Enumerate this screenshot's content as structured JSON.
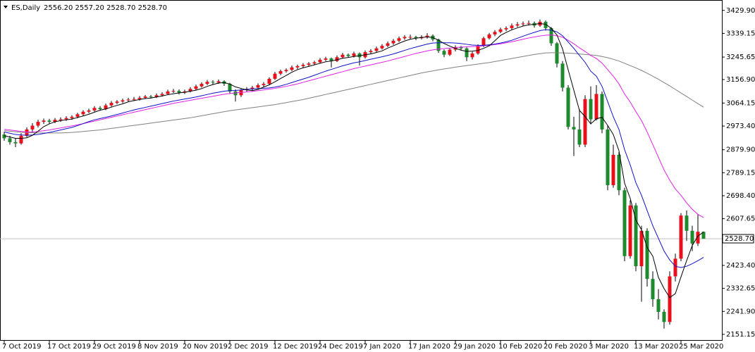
{
  "chart_data": {
    "type": "candlestick",
    "symbol": "ES,Daily",
    "ohlc_text": "2556.20 2557.20 2528.70 2528.70",
    "up_color": "#e8111b",
    "down_color": "#1e8a2e",
    "wick_color": "#000000",
    "ylim": [
      2126,
      3457
    ],
    "yticks": [
      {
        "value": 3429.9,
        "label": "3429.90"
      },
      {
        "value": 3339.15,
        "label": "3339.15"
      },
      {
        "value": 3245.65,
        "label": "3245.65"
      },
      {
        "value": 3156.9,
        "label": "3156.90"
      },
      {
        "value": 3064.15,
        "label": "3064.15"
      },
      {
        "value": 2973.4,
        "label": "2973.40"
      },
      {
        "value": 2879.9,
        "label": "2879.90"
      },
      {
        "value": 2789.15,
        "label": "2789.15"
      },
      {
        "value": 2698.4,
        "label": "2698.40"
      },
      {
        "value": 2607.65,
        "label": "2607.65"
      },
      {
        "value": 2423.4,
        "label": "2423.40"
      },
      {
        "value": 2332.65,
        "label": "2332.65"
      },
      {
        "value": 2241.9,
        "label": "2241.90"
      },
      {
        "value": 2151.15,
        "label": "2151.15"
      }
    ],
    "current_price": {
      "value": 2528.7,
      "label": "2528.70",
      "color": "#c0c0c0"
    },
    "categories": [
      "7 Oct 2019",
      null,
      null,
      null,
      null,
      null,
      null,
      null,
      "17 Oct 2019",
      null,
      null,
      null,
      null,
      null,
      null,
      null,
      "29 Oct 2019",
      null,
      null,
      null,
      null,
      null,
      null,
      null,
      "8 Nov 2019",
      null,
      null,
      null,
      null,
      null,
      null,
      null,
      "20 Nov 2019",
      null,
      null,
      null,
      null,
      null,
      null,
      null,
      "2 Dec 2019",
      null,
      null,
      null,
      null,
      null,
      null,
      null,
      "12 Dec 2019",
      null,
      null,
      null,
      null,
      null,
      null,
      null,
      "24 Dec 2019",
      null,
      null,
      null,
      null,
      null,
      null,
      null,
      "7 Jan 2020",
      null,
      null,
      null,
      null,
      null,
      null,
      null,
      "17 Jan 2020",
      null,
      null,
      null,
      null,
      null,
      null,
      null,
      "29 Jan 2020",
      null,
      null,
      null,
      null,
      null,
      null,
      null,
      "10 Feb 2020",
      null,
      null,
      null,
      null,
      null,
      null,
      null,
      "20 Feb 2020",
      null,
      null,
      null,
      null,
      null,
      null,
      null,
      "3 Mar 2020",
      null,
      null,
      null,
      null,
      null,
      null,
      null,
      "13 Mar 2020",
      null,
      null,
      null,
      null,
      null,
      null,
      null,
      "25 Mar 2020",
      null,
      null,
      null,
      null
    ],
    "open": [
      2940,
      2925,
      2910,
      2905,
      2935,
      2960,
      2975,
      2990,
      2995,
      2990,
      2998,
      3000,
      3005,
      3010,
      3020,
      3030,
      3035,
      3045,
      3040,
      3055,
      3065,
      3070,
      3075,
      3078,
      3080,
      3085,
      3090,
      3088,
      3095,
      3100,
      3110,
      3112,
      3105,
      3110,
      3120,
      3130,
      3140,
      3148,
      3145,
      3150,
      3140,
      3110,
      3095,
      3115,
      3120,
      3125,
      3135,
      3140,
      3160,
      3180,
      3190,
      3195,
      3205,
      3210,
      3215,
      3220,
      3225,
      3235,
      3240,
      3230,
      3245,
      3255,
      3250,
      3260,
      3245,
      3265,
      3270,
      3280,
      3290,
      3300,
      3310,
      3320,
      3325,
      3325,
      3320,
      3325,
      3330,
      3315,
      3270,
      3255,
      3275,
      3285,
      3280,
      3245,
      3260,
      3290,
      3320,
      3335,
      3345,
      3355,
      3360,
      3370,
      3375,
      3378,
      3380,
      3370,
      3385,
      3360,
      3300,
      3220,
      3125,
      2970,
      2960,
      2900,
      3080,
      3000,
      3100,
      2960,
      2740,
      2860,
      2720,
      2460,
      2660,
      2420,
      2560,
      2370,
      2290,
      2240,
      2200,
      2380,
      2450,
      2620,
      2560,
      2510,
      2556.2
    ],
    "high": [
      2950,
      2935,
      2925,
      2945,
      2968,
      2985,
      2998,
      3003,
      3002,
      3005,
      3008,
      3012,
      3016,
      3026,
      3036,
      3042,
      3052,
      3052,
      3062,
      3072,
      3076,
      3082,
      3085,
      3088,
      3092,
      3096,
      3096,
      3102,
      3107,
      3117,
      3120,
      3118,
      3117,
      3127,
      3137,
      3146,
      3155,
      3154,
      3157,
      3154,
      3144,
      3118,
      3120,
      3127,
      3132,
      3142,
      3147,
      3166,
      3187,
      3196,
      3201,
      3212,
      3216,
      3222,
      3226,
      3231,
      3242,
      3247,
      3244,
      3252,
      3262,
      3260,
      3267,
      3264,
      3272,
      3277,
      3287,
      3297,
      3307,
      3317,
      3327,
      3332,
      3334,
      3330,
      3332,
      3340,
      3335,
      3318,
      3276,
      3282,
      3292,
      3290,
      3284,
      3267,
      3296,
      3326,
      3341,
      3352,
      3362,
      3367,
      3378,
      3384,
      3386,
      3390,
      3386,
      3394,
      3390,
      3364,
      3305,
      3230,
      3135,
      3010,
      3040,
      3095,
      3130,
      3135,
      3110,
      2975,
      2900,
      2870,
      2730,
      2680,
      2670,
      2580,
      2570,
      2400,
      2330,
      2250,
      2400,
      2470,
      2630,
      2640,
      2580,
      2625,
      2557.2
    ],
    "low": [
      2915,
      2900,
      2890,
      2900,
      2930,
      2950,
      2968,
      2982,
      2982,
      2985,
      2990,
      2994,
      2998,
      3004,
      3014,
      3024,
      3030,
      3034,
      3036,
      3050,
      3060,
      3064,
      3070,
      3072,
      3074,
      3080,
      3082,
      3084,
      3090,
      3096,
      3104,
      3098,
      3100,
      3106,
      3115,
      3125,
      3135,
      3138,
      3140,
      3132,
      3100,
      3070,
      3088,
      3108,
      3112,
      3120,
      3128,
      3136,
      3155,
      3174,
      3184,
      3190,
      3198,
      3204,
      3208,
      3214,
      3220,
      3230,
      3205,
      3226,
      3240,
      3244,
      3244,
      3212,
      3240,
      3258,
      3265,
      3275,
      3285,
      3294,
      3305,
      3314,
      3316,
      3312,
      3315,
      3318,
      3308,
      3262,
      3245,
      3250,
      3268,
      3272,
      3230,
      3236,
      3255,
      3285,
      3315,
      3328,
      3340,
      3348,
      3354,
      3364,
      3368,
      3370,
      3362,
      3365,
      3350,
      3290,
      3205,
      3110,
      2960,
      2855,
      2890,
      2890,
      2980,
      2995,
      2945,
      2720,
      2730,
      2700,
      2440,
      2450,
      2400,
      2280,
      2340,
      2260,
      2210,
      2174,
      2190,
      2360,
      2440,
      2520,
      2480,
      2500,
      2528.7
    ],
    "close": [
      2925,
      2910,
      2905,
      2935,
      2960,
      2975,
      2990,
      2995,
      2990,
      2998,
      3000,
      3005,
      3010,
      3020,
      3030,
      3035,
      3045,
      3040,
      3055,
      3065,
      3070,
      3075,
      3078,
      3080,
      3085,
      3090,
      3088,
      3095,
      3100,
      3110,
      3112,
      3105,
      3110,
      3120,
      3130,
      3140,
      3148,
      3145,
      3150,
      3140,
      3110,
      3095,
      3115,
      3120,
      3125,
      3135,
      3140,
      3160,
      3180,
      3190,
      3195,
      3205,
      3210,
      3215,
      3220,
      3225,
      3235,
      3240,
      3230,
      3245,
      3255,
      3250,
      3260,
      3245,
      3265,
      3270,
      3280,
      3290,
      3300,
      3310,
      3320,
      3325,
      3325,
      3320,
      3325,
      3330,
      3315,
      3270,
      3255,
      3275,
      3285,
      3280,
      3245,
      3260,
      3290,
      3320,
      3335,
      3345,
      3355,
      3360,
      3370,
      3375,
      3378,
      3380,
      3370,
      3385,
      3360,
      3300,
      3220,
      3125,
      2970,
      2960,
      2900,
      3080,
      3000,
      3100,
      2960,
      2740,
      2860,
      2720,
      2460,
      2660,
      2420,
      2560,
      2370,
      2290,
      2240,
      2200,
      2380,
      2450,
      2620,
      2560,
      2510,
      2556.2,
      2528.7
    ],
    "ma_lines": [
      {
        "color": "#808080",
        "values": [
          2955,
          2953,
          2951,
          2949,
          2948,
          2947,
          2946,
          2946,
          2946,
          2946,
          2946,
          2947,
          2948,
          2950,
          2952,
          2954,
          2956,
          2958,
          2961,
          2964,
          2967,
          2970,
          2973,
          2976,
          2979,
          2982,
          2985,
          2988,
          2991,
          2994,
          2997,
          3000,
          3003,
          3006,
          3010,
          3014,
          3018,
          3022,
          3026,
          3030,
          3034,
          3037,
          3040,
          3043,
          3046,
          3049,
          3052,
          3055,
          3058,
          3062,
          3066,
          3070,
          3074,
          3078,
          3083,
          3088,
          3093,
          3098,
          3103,
          3108,
          3113,
          3118,
          3123,
          3128,
          3133,
          3138,
          3143,
          3148,
          3153,
          3158,
          3163,
          3168,
          3173,
          3178,
          3183,
          3187,
          3191,
          3195,
          3199,
          3202,
          3206,
          3209,
          3212,
          3215,
          3218,
          3221,
          3224,
          3228,
          3232,
          3236,
          3240,
          3244,
          3248,
          3252,
          3256,
          3259,
          3262,
          3263,
          3263,
          3262,
          3261,
          3260,
          3258,
          3256,
          3254,
          3252,
          3248,
          3243,
          3237,
          3230,
          3221,
          3212,
          3203,
          3193,
          3182,
          3170,
          3158,
          3145,
          3132,
          3118,
          3104,
          3090,
          3076,
          3062,
          3048
        ]
      },
      {
        "color": "#e020e0",
        "values": [
          2960,
          2958,
          2955,
          2952,
          2950,
          2950,
          2952,
          2955,
          2958,
          2962,
          2966,
          2970,
          2974,
          2978,
          2983,
          2988,
          2993,
          2998,
          3003,
          3008,
          3013,
          3018,
          3023,
          3028,
          3033,
          3038,
          3043,
          3048,
          3053,
          3058,
          3063,
          3067,
          3071,
          3075,
          3079,
          3083,
          3087,
          3091,
          3095,
          3099,
          3102,
          3104,
          3106,
          3108,
          3110,
          3113,
          3116,
          3119,
          3122,
          3126,
          3130,
          3135,
          3140,
          3146,
          3152,
          3158,
          3164,
          3170,
          3176,
          3182,
          3188,
          3194,
          3200,
          3205,
          3210,
          3215,
          3220,
          3225,
          3230,
          3236,
          3242,
          3248,
          3254,
          3260,
          3265,
          3270,
          3274,
          3277,
          3279,
          3281,
          3283,
          3285,
          3286,
          3287,
          3288,
          3290,
          3292,
          3295,
          3298,
          3302,
          3306,
          3311,
          3316,
          3321,
          3325,
          3329,
          3332,
          3333,
          3330,
          3324,
          3312,
          3298,
          3282,
          3268,
          3252,
          3240,
          3222,
          3196,
          3170,
          3140,
          3100,
          3068,
          3030,
          2995,
          2950,
          2900,
          2850,
          2800,
          2760,
          2725,
          2700,
          2670,
          2645,
          2625,
          2612
        ]
      },
      {
        "color": "#1010c8",
        "values": [
          2950,
          2945,
          2940,
          2938,
          2937,
          2938,
          2940,
          2944,
          2948,
          2953,
          2958,
          2963,
          2968,
          2975,
          2983,
          2991,
          2998,
          3003,
          3008,
          3013,
          3019,
          3025,
          3031,
          3037,
          3042,
          3047,
          3052,
          3057,
          3062,
          3067,
          3072,
          3076,
          3080,
          3084,
          3088,
          3093,
          3098,
          3103,
          3107,
          3111,
          3113,
          3114,
          3116,
          3118,
          3120,
          3121,
          3122,
          3124,
          3127,
          3132,
          3138,
          3145,
          3152,
          3159,
          3166,
          3174,
          3182,
          3190,
          3197,
          3204,
          3211,
          3217,
          3223,
          3227,
          3232,
          3237,
          3242,
          3247,
          3252,
          3258,
          3265,
          3272,
          3279,
          3285,
          3291,
          3297,
          3301,
          3302,
          3302,
          3302,
          3301,
          3299,
          3296,
          3293,
          3292,
          3292,
          3294,
          3297,
          3301,
          3306,
          3312,
          3320,
          3328,
          3336,
          3343,
          3350,
          3354,
          3352,
          3345,
          3330,
          3305,
          3280,
          3252,
          3225,
          3190,
          3170,
          3130,
          3070,
          3010,
          2960,
          2880,
          2820,
          2750,
          2700,
          2640,
          2580,
          2530,
          2480,
          2445,
          2420,
          2415,
          2420,
          2430,
          2442,
          2455
        ]
      },
      {
        "color": "#000000",
        "values": [
          2935,
          2930,
          2925,
          2925,
          2927,
          2937,
          2953,
          2971,
          2982,
          2990,
          2995,
          2998,
          3001,
          3007,
          3013,
          3020,
          3028,
          3036,
          3041,
          3048,
          3055,
          3061,
          3069,
          3074,
          3078,
          3082,
          3084,
          3088,
          3092,
          3097,
          3101,
          3104,
          3107,
          3111,
          3115,
          3121,
          3130,
          3137,
          3143,
          3145,
          3139,
          3128,
          3122,
          3116,
          3113,
          3118,
          3127,
          3136,
          3148,
          3161,
          3173,
          3186,
          3196,
          3203,
          3209,
          3215,
          3221,
          3227,
          3230,
          3235,
          3241,
          3244,
          3248,
          3251,
          3255,
          3258,
          3264,
          3270,
          3281,
          3290,
          3300,
          3309,
          3316,
          3320,
          3323,
          3325,
          3323,
          3312,
          3299,
          3289,
          3280,
          3273,
          3268,
          3269,
          3272,
          3280,
          3290,
          3310,
          3331,
          3343,
          3353,
          3361,
          3368,
          3373,
          3375,
          3378,
          3375,
          3359,
          3333,
          3278,
          3195,
          3115,
          3035,
          3011,
          2982,
          3002,
          3008,
          2976,
          2940,
          2876,
          2748,
          2688,
          2602,
          2564,
          2494,
          2460,
          2376,
          2332,
          2296,
          2312,
          2378,
          2442,
          2502,
          2539,
          2555
        ]
      }
    ]
  }
}
